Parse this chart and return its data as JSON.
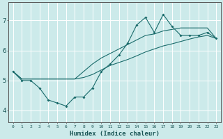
{
  "title": "",
  "xlabel": "Humidex (Indice chaleur)",
  "bg_color": "#cceaea",
  "grid_color": "#ffffff",
  "line_color": "#1a6b6b",
  "xlim": [
    -0.5,
    23.5
  ],
  "ylim": [
    3.6,
    7.6
  ],
  "xticks": [
    0,
    1,
    2,
    3,
    4,
    5,
    6,
    7,
    8,
    9,
    10,
    11,
    12,
    13,
    14,
    15,
    16,
    17,
    18,
    19,
    20,
    21,
    22,
    23
  ],
  "yticks": [
    4,
    5,
    6,
    7
  ],
  "x": [
    0,
    1,
    2,
    3,
    4,
    5,
    6,
    7,
    8,
    9,
    10,
    11,
    12,
    13,
    14,
    15,
    16,
    17,
    18,
    19,
    20,
    21,
    22,
    23
  ],
  "line_jagged": [
    5.3,
    5.0,
    5.0,
    4.75,
    4.35,
    4.25,
    4.15,
    4.45,
    4.45,
    4.75,
    5.3,
    5.55,
    5.85,
    6.25,
    6.85,
    7.1,
    6.6,
    7.2,
    6.8,
    6.5,
    6.5,
    6.5,
    6.6,
    6.4
  ],
  "line_upper": [
    5.3,
    5.05,
    5.05,
    5.05,
    5.05,
    5.05,
    5.05,
    5.05,
    5.3,
    5.55,
    5.75,
    5.9,
    6.05,
    6.2,
    6.35,
    6.5,
    6.55,
    6.65,
    6.7,
    6.75,
    6.75,
    6.75,
    6.75,
    6.4
  ],
  "line_lower": [
    5.3,
    5.05,
    5.05,
    5.05,
    5.05,
    5.05,
    5.05,
    5.05,
    5.1,
    5.2,
    5.35,
    5.5,
    5.6,
    5.7,
    5.82,
    5.95,
    6.05,
    6.15,
    6.22,
    6.3,
    6.38,
    6.45,
    6.5,
    6.4
  ]
}
